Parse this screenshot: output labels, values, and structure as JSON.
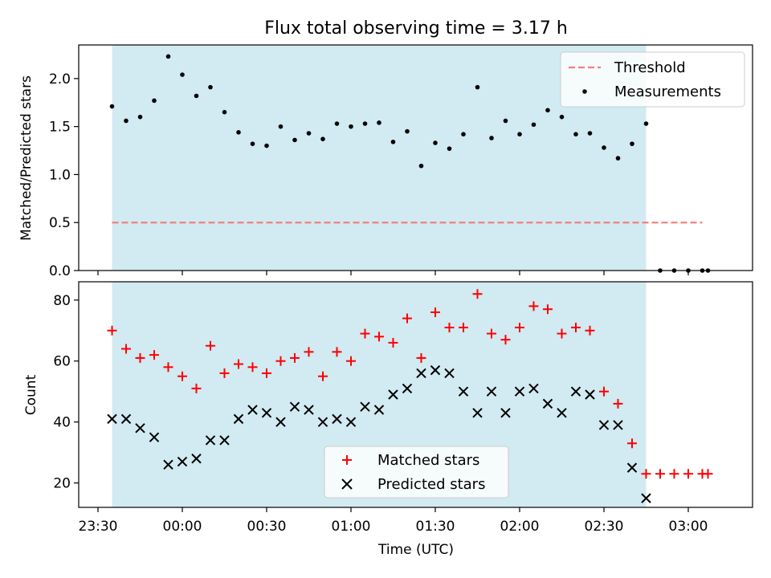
{
  "figure_title": "Flux total observing time = 3.17 h",
  "colors": {
    "shade": "#add8e6",
    "threshold": "#f08080",
    "measurements": "#000000",
    "matched": "#ff0000",
    "predicted": "#000000"
  },
  "chart_data": [
    {
      "type": "scatter",
      "title": "Flux total observing time = 3.17 h",
      "xlabel": "",
      "ylabel": "Matched/Predicted stars",
      "ylim": [
        0,
        2.35
      ],
      "y_ticks": [
        "0.0",
        "0.5",
        "1.0",
        "1.5",
        "2.0"
      ],
      "shaded_span": [
        "23:35",
        "02:45"
      ],
      "threshold": {
        "name": "Threshold",
        "value": 0.5,
        "x_range": [
          "23:35",
          "03:05"
        ],
        "style": "dashed"
      },
      "legend": {
        "position": "top-right",
        "entries": [
          "Threshold",
          "Measurements"
        ]
      },
      "series": [
        {
          "name": "Measurements",
          "marker": "dot",
          "x": [
            "23:35",
            "23:40",
            "23:45",
            "23:50",
            "23:55",
            "00:00",
            "00:05",
            "00:10",
            "00:15",
            "00:20",
            "00:25",
            "00:30",
            "00:35",
            "00:40",
            "00:45",
            "00:50",
            "00:55",
            "01:00",
            "01:05",
            "01:10",
            "01:15",
            "01:20",
            "01:25",
            "01:30",
            "01:35",
            "01:40",
            "01:45",
            "01:50",
            "01:55",
            "02:00",
            "02:05",
            "02:10",
            "02:15",
            "02:20",
            "02:25",
            "02:30",
            "02:35",
            "02:40",
            "02:45",
            "02:50",
            "02:55",
            "03:00",
            "03:05",
            "03:07"
          ],
          "values": [
            1.71,
            1.56,
            1.6,
            1.77,
            2.23,
            2.04,
            1.82,
            1.91,
            1.65,
            1.44,
            1.32,
            1.3,
            1.5,
            1.36,
            1.43,
            1.37,
            1.53,
            1.5,
            1.53,
            1.54,
            1.34,
            1.45,
            1.09,
            1.33,
            1.27,
            1.42,
            1.91,
            1.38,
            1.56,
            1.42,
            1.52,
            1.67,
            1.6,
            1.42,
            1.43,
            1.28,
            1.17,
            1.32,
            1.53,
            0.0,
            0.0,
            0.0,
            0.0,
            0.0
          ]
        }
      ]
    },
    {
      "type": "scatter",
      "xlabel": "Time (UTC)",
      "ylabel": "Count",
      "ylim": [
        12,
        86
      ],
      "y_ticks": [
        "20",
        "40",
        "60",
        "80"
      ],
      "x_ticks": [
        "23:30",
        "00:00",
        "00:30",
        "01:00",
        "01:30",
        "02:00",
        "02:30",
        "03:00"
      ],
      "shaded_span": [
        "23:35",
        "02:45"
      ],
      "legend": {
        "position": "lower-center",
        "entries": [
          "Matched stars",
          "Predicted stars"
        ]
      },
      "series": [
        {
          "name": "Matched stars",
          "marker": "plus",
          "x": [
            "23:35",
            "23:40",
            "23:45",
            "23:50",
            "23:55",
            "00:00",
            "00:05",
            "00:10",
            "00:15",
            "00:20",
            "00:25",
            "00:30",
            "00:35",
            "00:40",
            "00:45",
            "00:50",
            "00:55",
            "01:00",
            "01:05",
            "01:10",
            "01:15",
            "01:20",
            "01:25",
            "01:30",
            "01:35",
            "01:40",
            "01:45",
            "01:50",
            "01:55",
            "02:00",
            "02:05",
            "02:10",
            "02:15",
            "02:20",
            "02:25",
            "02:30",
            "02:35",
            "02:40",
            "02:45",
            "02:50",
            "02:55",
            "03:00",
            "03:05",
            "03:07"
          ],
          "values": [
            70,
            64,
            61,
            62,
            58,
            55,
            51,
            65,
            56,
            59,
            58,
            56,
            60,
            61,
            63,
            55,
            63,
            60,
            69,
            68,
            66,
            74,
            61,
            76,
            71,
            71,
            82,
            69,
            67,
            71,
            78,
            77,
            69,
            71,
            70,
            50,
            46,
            33,
            23,
            23,
            23,
            23,
            23,
            23
          ]
        },
        {
          "name": "Predicted stars",
          "marker": "x",
          "x": [
            "23:35",
            "23:40",
            "23:45",
            "23:50",
            "23:55",
            "00:00",
            "00:05",
            "00:10",
            "00:15",
            "00:20",
            "00:25",
            "00:30",
            "00:35",
            "00:40",
            "00:45",
            "00:50",
            "00:55",
            "01:00",
            "01:05",
            "01:10",
            "01:15",
            "01:20",
            "01:25",
            "01:30",
            "01:35",
            "01:40",
            "01:45",
            "01:50",
            "01:55",
            "02:00",
            "02:05",
            "02:10",
            "02:15",
            "02:20",
            "02:25",
            "02:30",
            "02:35",
            "02:40",
            "02:45"
          ],
          "values": [
            41,
            41,
            38,
            35,
            26,
            27,
            28,
            34,
            34,
            41,
            44,
            43,
            40,
            45,
            44,
            40,
            41,
            40,
            45,
            44,
            49,
            51,
            56,
            57,
            56,
            50,
            43,
            50,
            43,
            50,
            51,
            46,
            43,
            50,
            49,
            39,
            39,
            25,
            15
          ]
        }
      ]
    }
  ]
}
